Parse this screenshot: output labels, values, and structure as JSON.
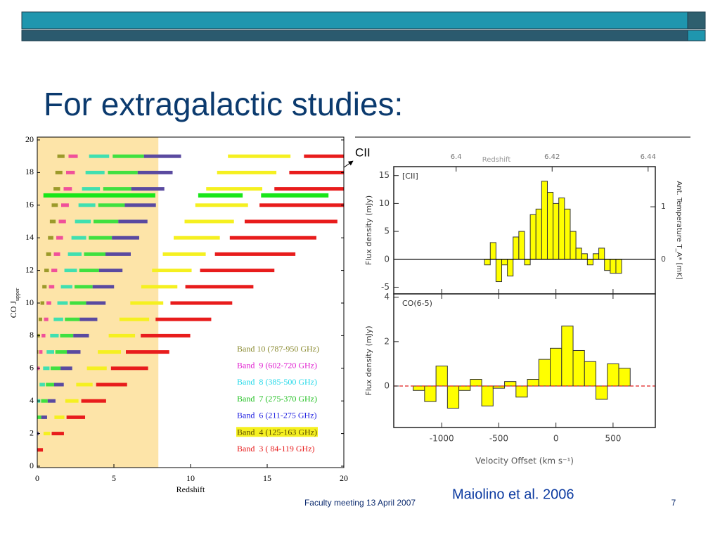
{
  "header": {
    "title": "For extragalactic studies:"
  },
  "annotation": {
    "text": "CII"
  },
  "citation": "Maiolino et al. 2006",
  "footer": {
    "text": "Faculty meeting 13 April 2007",
    "page": "7"
  },
  "chart_data": [
    {
      "type": "range_bar",
      "xlabel": "Redshift",
      "ylabel": "CO J",
      "ylabel_sub": "upper",
      "xlim": [
        0,
        20
      ],
      "ylim": [
        0,
        20
      ],
      "xticks": [
        0,
        5,
        10,
        15,
        20
      ],
      "yticks": [
        0,
        2,
        4,
        6,
        8,
        10,
        12,
        14,
        16,
        18,
        20
      ],
      "legend": "lower right",
      "highlight": {
        "xmin": 0,
        "xmax": 7.9,
        "color": "#fde4a8"
      },
      "cii_row": {
        "y": 16.6,
        "xmin": [
          0.4,
          10.5,
          14.6
        ],
        "xmax": [
          7.7,
          13.4,
          19
        ],
        "color": "#19e619"
      },
      "series": [
        {
          "name": "Band 10 (787-950 GHz)",
          "color": "#9c9a2a",
          "label_color": "#8a8a30",
          "y": [
            7,
            8,
            9,
            10,
            11,
            12,
            13,
            14,
            15,
            16,
            17,
            18,
            19
          ],
          "xmin": [
            0,
            0,
            0.09,
            0.21,
            0.33,
            0.46,
            0.58,
            0.7,
            0.82,
            0.94,
            1.06,
            1.18,
            1.31
          ],
          "xmax": [
            0.03,
            0.17,
            0.32,
            0.46,
            0.61,
            0.76,
            0.9,
            1.05,
            1.2,
            1.34,
            1.49,
            1.64,
            1.78
          ]
        },
        {
          "name": "Band  9 (602-720 GHz)",
          "color": "#f0509a",
          "label_color": "#e020d0",
          "y": [
            6,
            7,
            8,
            9,
            10,
            11,
            12,
            13,
            14,
            15,
            16,
            17,
            18,
            19
          ],
          "xmin": [
            0,
            0.12,
            0.28,
            0.44,
            0.6,
            0.76,
            0.92,
            1.08,
            1.24,
            1.4,
            1.56,
            1.72,
            1.88,
            2.04
          ],
          "xmax": [
            0.15,
            0.34,
            0.53,
            0.72,
            0.91,
            1.11,
            1.3,
            1.49,
            1.68,
            1.87,
            2.06,
            2.26,
            2.45,
            2.64
          ]
        },
        {
          "name": "Band  8 (385-500 GHz)",
          "color": "#40e0b0",
          "label_color": "#20d8e8",
          "y": [
            4,
            5,
            6,
            7,
            8,
            9,
            10,
            11,
            12,
            13,
            14,
            15,
            16,
            17,
            18,
            19
          ],
          "xmin": [
            0,
            0.15,
            0.38,
            0.61,
            0.84,
            1.07,
            1.31,
            1.54,
            1.77,
            2.0,
            2.23,
            2.46,
            2.69,
            2.92,
            3.15,
            3.38
          ],
          "xmax": [
            0.2,
            0.5,
            0.8,
            1.1,
            1.4,
            1.69,
            1.99,
            2.29,
            2.59,
            2.89,
            3.19,
            3.49,
            3.79,
            4.09,
            4.39,
            4.69
          ]
        },
        {
          "name": "Band  7 (275-370 GHz)",
          "color": "#40e040",
          "label_color": "#20c020",
          "y": [
            3,
            4,
            5,
            6,
            7,
            8,
            9,
            10,
            11,
            12,
            13,
            14,
            15,
            16,
            17,
            18,
            19
          ],
          "xmin": [
            0,
            0.25,
            0.56,
            0.87,
            1.18,
            1.49,
            1.8,
            2.12,
            2.43,
            2.74,
            3.05,
            3.36,
            3.67,
            3.98,
            4.3,
            4.61,
            4.92
          ],
          "xmax": [
            0.26,
            0.68,
            1.1,
            1.52,
            1.93,
            2.35,
            2.77,
            3.19,
            3.61,
            4.03,
            4.45,
            4.87,
            5.29,
            5.71,
            6.13,
            6.55,
            6.96
          ]
        },
        {
          "name": "Band  6 (211-275 GHz)",
          "color": "#5a4aa0",
          "label_color": "#2020e0",
          "y": [
            2,
            3,
            4,
            5,
            6,
            7,
            8,
            9,
            10,
            11,
            12,
            13,
            14,
            15,
            16,
            17,
            18,
            19
          ],
          "xmin": [
            0,
            0.26,
            0.68,
            1.1,
            1.52,
            1.93,
            2.35,
            2.77,
            3.19,
            3.61,
            4.03,
            4.45,
            4.87,
            5.29,
            5.71,
            6.13,
            6.55,
            6.96
          ],
          "xmax": [
            0.09,
            0.64,
            1.19,
            1.73,
            2.28,
            2.82,
            3.37,
            3.92,
            4.46,
            5.01,
            5.56,
            6.1,
            6.65,
            7.19,
            7.74,
            8.29,
            8.83,
            9.38
          ]
        },
        {
          "name": "Band  4 (125-163 GHz)",
          "color": "#f5f020",
          "label_color": "#5a4a00",
          "y": [
            2,
            3,
            4,
            5,
            6,
            7,
            8,
            9,
            10,
            11,
            12,
            13,
            14,
            15,
            16,
            17,
            18,
            19
          ],
          "xmin": [
            0.41,
            1.12,
            1.83,
            2.54,
            3.24,
            3.95,
            4.66,
            5.36,
            6.07,
            6.78,
            7.49,
            8.19,
            8.9,
            9.61,
            10.31,
            11.02,
            11.73,
            12.44
          ],
          "xmax": [
            0.84,
            1.77,
            2.69,
            3.61,
            4.53,
            5.46,
            6.38,
            7.3,
            8.22,
            9.14,
            10.07,
            10.99,
            11.91,
            12.83,
            13.75,
            14.68,
            15.6,
            16.52
          ]
        },
        {
          "name": "Band  3 ( 84-119 GHz)",
          "color": "#e81c1c",
          "label_color": "#e81c1c",
          "y": [
            1,
            2,
            3,
            4,
            5,
            6,
            7,
            8,
            9,
            10,
            11,
            12,
            13,
            14,
            15,
            16,
            17,
            18,
            19
          ],
          "xmin": [
            0,
            0.94,
            1.91,
            2.87,
            3.84,
            4.81,
            5.78,
            6.75,
            7.72,
            8.69,
            9.66,
            10.62,
            11.59,
            12.56,
            13.53,
            14.5,
            15.47,
            16.44,
            17.4
          ],
          "xmax": [
            0.37,
            1.74,
            3.12,
            4.49,
            5.86,
            7.23,
            8.61,
            9.98,
            11.35,
            12.72,
            14.1,
            15.47,
            16.84,
            18.21,
            19.58,
            20,
            20,
            20,
            20
          ]
        }
      ]
    },
    {
      "type": "histogram",
      "title": "[CII]",
      "ylabel": "Flux density (mJy)",
      "color": "#ffff00",
      "bins": [
        -625,
        -575,
        -525,
        -475,
        -425,
        -375,
        -325,
        -275,
        -225,
        -175,
        -125,
        -75,
        -25,
        25,
        75,
        125,
        175,
        225,
        275,
        325,
        375,
        425,
        475,
        525,
        575
      ],
      "values": [
        -1,
        3,
        -4,
        -1,
        -3,
        4,
        5,
        -1,
        8,
        9,
        14,
        12,
        10,
        11,
        9,
        5,
        2,
        1,
        -1,
        1,
        2,
        -2,
        -2.5,
        -2.5
      ],
      "xlim": [
        -1420,
        870
      ],
      "ylim": [
        -6.2,
        16.6
      ],
      "xticks": [
        -1000,
        -500,
        0,
        500
      ],
      "yticks": [
        -5,
        0,
        5,
        10,
        15
      ],
      "zero_line": {
        "color": "#000000",
        "dashed": false
      },
      "x2label": "Redshift",
      "x2lim": [
        6.387,
        6.4415
      ],
      "x2ticks": [
        6.4,
        6.42,
        6.44
      ],
      "y2label": "Ant. Temperature T_A* [mK]",
      "y2lim": [
        -0.65,
        1.76
      ],
      "y2ticks": [
        0,
        1
      ]
    },
    {
      "type": "histogram",
      "title": "CO(6-5)",
      "ylabel": "Flux density (mJy)",
      "xlabel": "Velocity Offset (km s⁻¹)",
      "color": "#ffff00",
      "bins": [
        -1250,
        -1150,
        -1050,
        -950,
        -850,
        -750,
        -650,
        -550,
        -450,
        -350,
        -250,
        -150,
        -50,
        50,
        150,
        250,
        350,
        450,
        550,
        650
      ],
      "values": [
        -0.2,
        -0.7,
        0.9,
        -1.0,
        -0.2,
        0.3,
        -0.9,
        -0.1,
        0.2,
        -0.5,
        0.3,
        1.2,
        1.7,
        2.7,
        1.6,
        1.1,
        -0.6,
        1.0,
        0.8
      ],
      "xlim": [
        -1420,
        870
      ],
      "ylim": [
        -1.87,
        4.15
      ],
      "xticks": [
        -1000,
        -500,
        0,
        500
      ],
      "yticks": [
        0,
        2,
        4
      ],
      "zero_line": {
        "color": "#e02020",
        "dashed": true
      }
    }
  ]
}
